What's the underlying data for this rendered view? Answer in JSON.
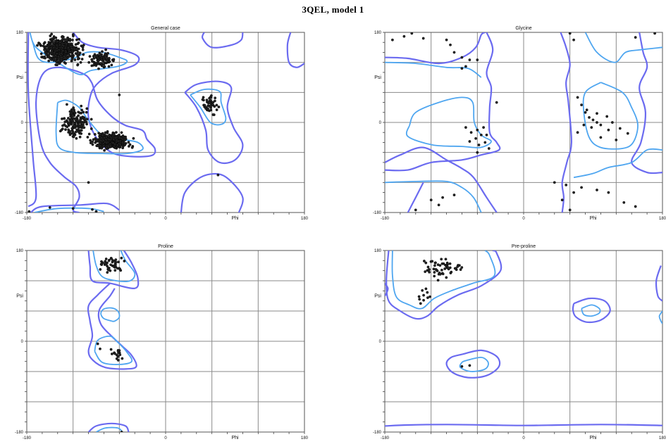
{
  "title": "3QEL, model 1",
  "colors": {
    "outer_contour": "#6b6bf0",
    "inner_contour": "#4fa6f0",
    "grid": "#8a8a8a",
    "point": "#222222"
  },
  "chart_data": [
    {
      "type": "scatter",
      "title": "General case",
      "xlabel": "Phi",
      "ylabel": "Psi",
      "xlim": [
        -180,
        180
      ],
      "ylim": [
        -180,
        180
      ],
      "xticks": [
        "-180",
        "0",
        "180"
      ],
      "yticks": [
        "180",
        "0",
        "-180"
      ],
      "grid": true,
      "clusters": [
        {
          "x": [
            -170,
            -100
          ],
          "y": [
            110,
            180
          ],
          "n": 420
        },
        {
          "x": [
            -105,
            -60
          ],
          "y": [
            100,
            150
          ],
          "n": 90
        },
        {
          "x": [
            -140,
            -90
          ],
          "y": [
            -40,
            40
          ],
          "n": 160
        },
        {
          "x": [
            -100,
            -40
          ],
          "y": [
            -60,
            -15
          ],
          "n": 380
        },
        {
          "x": [
            40,
            75
          ],
          "y": [
            10,
            60
          ],
          "n": 45
        }
      ],
      "points": [
        {
          "x": -177,
          "y": -178
        },
        {
          "x": -150,
          "y": -170
        },
        {
          "x": -120,
          "y": -172
        },
        {
          "x": -95,
          "y": -174
        },
        {
          "x": -90,
          "y": -178
        },
        {
          "x": -100,
          "y": -120
        },
        {
          "x": 68,
          "y": -105
        },
        {
          "x": -135,
          "y": -15
        },
        {
          "x": -60,
          "y": 55
        }
      ]
    },
    {
      "type": "scatter",
      "title": "Glycine",
      "xlabel": "Phi",
      "ylabel": "Psi",
      "xlim": [
        -180,
        180
      ],
      "ylim": [
        -180,
        180
      ],
      "xticks": [
        "-180",
        "0",
        "180"
      ],
      "yticks": [
        "180",
        "0",
        "-180"
      ],
      "grid": true,
      "points": [
        {
          "x": -170,
          "y": 165
        },
        {
          "x": -155,
          "y": 172
        },
        {
          "x": -145,
          "y": 178
        },
        {
          "x": -130,
          "y": 168
        },
        {
          "x": -100,
          "y": 165
        },
        {
          "x": -95,
          "y": 155
        },
        {
          "x": -90,
          "y": 140
        },
        {
          "x": -80,
          "y": 130
        },
        {
          "x": -75,
          "y": 112
        },
        {
          "x": -70,
          "y": 125
        },
        {
          "x": -60,
          "y": 125
        },
        {
          "x": -80,
          "y": 108
        },
        {
          "x": 65,
          "y": 165
        },
        {
          "x": 60,
          "y": 178
        },
        {
          "x": 145,
          "y": 170
        },
        {
          "x": 170,
          "y": 178
        },
        {
          "x": -75,
          "y": -10
        },
        {
          "x": -68,
          "y": -20
        },
        {
          "x": -60,
          "y": -15
        },
        {
          "x": -55,
          "y": -25
        },
        {
          "x": -62,
          "y": -32
        },
        {
          "x": -70,
          "y": -38
        },
        {
          "x": -58,
          "y": -45
        },
        {
          "x": -50,
          "y": -40
        },
        {
          "x": -48,
          "y": -25
        },
        {
          "x": -52,
          "y": -10
        },
        {
          "x": -60,
          "y": -60
        },
        {
          "x": -45,
          "y": -52
        },
        {
          "x": -35,
          "y": 40
        },
        {
          "x": 70,
          "y": 50
        },
        {
          "x": 75,
          "y": 35
        },
        {
          "x": 80,
          "y": 20
        },
        {
          "x": 85,
          "y": 10
        },
        {
          "x": 90,
          "y": 5
        },
        {
          "x": 95,
          "y": 0
        },
        {
          "x": 100,
          "y": -5
        },
        {
          "x": 88,
          "y": -10
        },
        {
          "x": 78,
          "y": -5
        },
        {
          "x": 82,
          "y": 25
        },
        {
          "x": 95,
          "y": 18
        },
        {
          "x": 108,
          "y": 12
        },
        {
          "x": 115,
          "y": 0
        },
        {
          "x": 110,
          "y": -15
        },
        {
          "x": 125,
          "y": -12
        },
        {
          "x": 135,
          "y": -22
        },
        {
          "x": 100,
          "y": -30
        },
        {
          "x": 120,
          "y": -35
        },
        {
          "x": 70,
          "y": -20
        },
        {
          "x": -120,
          "y": -155
        },
        {
          "x": -105,
          "y": -150
        },
        {
          "x": -90,
          "y": -145
        },
        {
          "x": -110,
          "y": -165
        },
        {
          "x": -140,
          "y": -175
        },
        {
          "x": 40,
          "y": -120
        },
        {
          "x": 55,
          "y": -125
        },
        {
          "x": 65,
          "y": -140
        },
        {
          "x": 75,
          "y": -130
        },
        {
          "x": 95,
          "y": -135
        },
        {
          "x": 110,
          "y": -140
        },
        {
          "x": 50,
          "y": -155
        },
        {
          "x": 130,
          "y": -160
        },
        {
          "x": 145,
          "y": -168
        },
        {
          "x": 60,
          "y": -175
        }
      ]
    },
    {
      "type": "scatter",
      "title": "Proline",
      "xlabel": "Phi",
      "ylabel": "Psi",
      "xlim": [
        -180,
        180
      ],
      "ylim": [
        -180,
        180
      ],
      "xticks": [
        "-180",
        "0",
        "180"
      ],
      "yticks": [
        "180",
        "0",
        "-180"
      ],
      "grid": true,
      "clusters": [
        {
          "x": [
            -90,
            -50
          ],
          "y": [
            130,
            175
          ],
          "n": 45
        },
        {
          "x": [
            -75,
            -50
          ],
          "y": [
            -45,
            -10
          ],
          "n": 16
        }
      ],
      "points": [
        {
          "x": -85,
          "y": -15
        },
        {
          "x": -88,
          "y": -5
        },
        {
          "x": -57,
          "y": -180
        }
      ]
    },
    {
      "type": "scatter",
      "title": "Pre-proline",
      "xlabel": "Phi",
      "ylabel": "Psi",
      "xlim": [
        -180,
        180
      ],
      "ylim": [
        -180,
        180
      ],
      "xticks": [
        "-180",
        "0",
        "180"
      ],
      "yticks": [
        "180",
        "0",
        "-180"
      ],
      "grid": true,
      "clusters": [
        {
          "x": [
            -150,
            -60
          ],
          "y": [
            115,
            178
          ],
          "n": 55
        },
        {
          "x": [
            -145,
            -110
          ],
          "y": [
            70,
            110
          ],
          "n": 10
        }
      ],
      "points": [
        {
          "x": -80,
          "y": -50
        },
        {
          "x": -70,
          "y": -48
        }
      ]
    }
  ]
}
